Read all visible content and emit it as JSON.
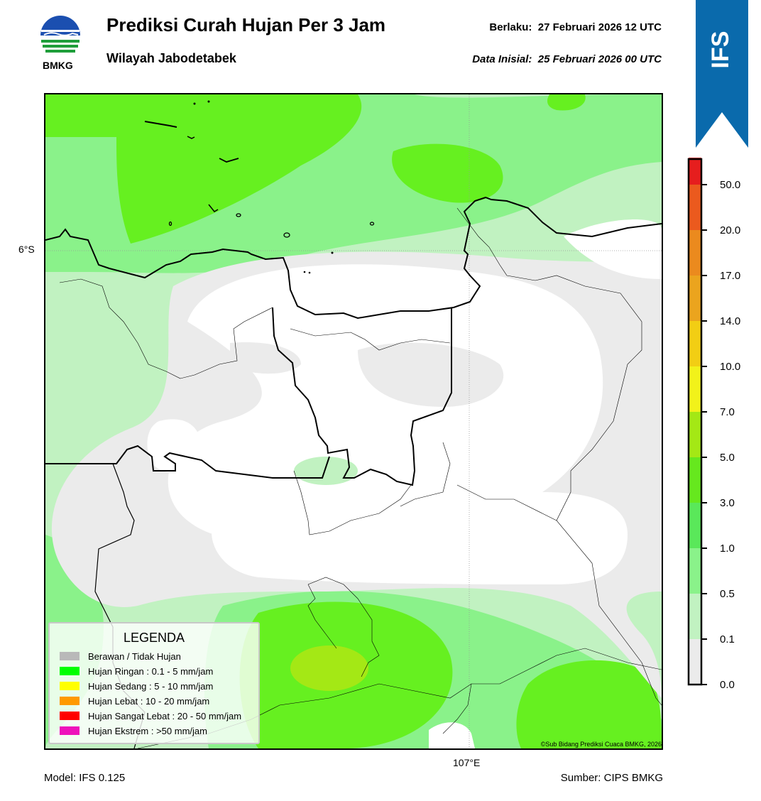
{
  "header": {
    "title": "Prediksi Curah Hujan Per 3 Jam",
    "subtitle": "Wilayah Jabodetabek",
    "valid_label": "Berlaku:",
    "valid_value": "27 Februari 2026 12 UTC",
    "init_label": "Data Inisial:",
    "init_value": "25 Februari 2026 00 UTC",
    "logo_text": "BMKG"
  },
  "banner": {
    "text": "IFS",
    "color": "#0a6aac"
  },
  "map": {
    "lat_label": "6°S",
    "lon_label": "107°E",
    "copyright": "©Sub Bidang Prediksi Cuaca BMKG, 2026"
  },
  "colorbar": {
    "ticks": [
      "0.0",
      "0.1",
      "0.5",
      "1.0",
      "3.0",
      "5.0",
      "7.0",
      "10.0",
      "14.0",
      "17.0",
      "20.0",
      "50.0"
    ],
    "colors": [
      "#ebebeb",
      "#c1f2c1",
      "#8af28a",
      "#5ae85a",
      "#66e81e",
      "#a4e815",
      "#f2f21a",
      "#f2ce14",
      "#eba41e",
      "#eb8a1e",
      "#eb5a1e",
      "#e61e1e",
      "#e61eb4"
    ]
  },
  "legend": {
    "title": "LEGENDA",
    "items": [
      {
        "label": "Berawan / Tidak Hujan",
        "color": "#b9b9b9"
      },
      {
        "label": "Hujan Ringan : 0.1 - 5 mm/jam",
        "color": "#00ff00"
      },
      {
        "label": "Hujan Sedang : 5 - 10 mm/jam",
        "color": "#ffff00"
      },
      {
        "label": "Hujan Lebat : 10 - 20 mm/jam",
        "color": "#ff9900"
      },
      {
        "label": "Hujan Sangat Lebat : 20 - 50 mm/jam",
        "color": "#ff0000"
      },
      {
        "label": "Hujan Ekstrem : >50 mm/jam",
        "color": "#ee11bb"
      }
    ]
  },
  "footer": {
    "model": "Model: IFS 0.125",
    "source": "Sumber: CIPS BMKG"
  }
}
